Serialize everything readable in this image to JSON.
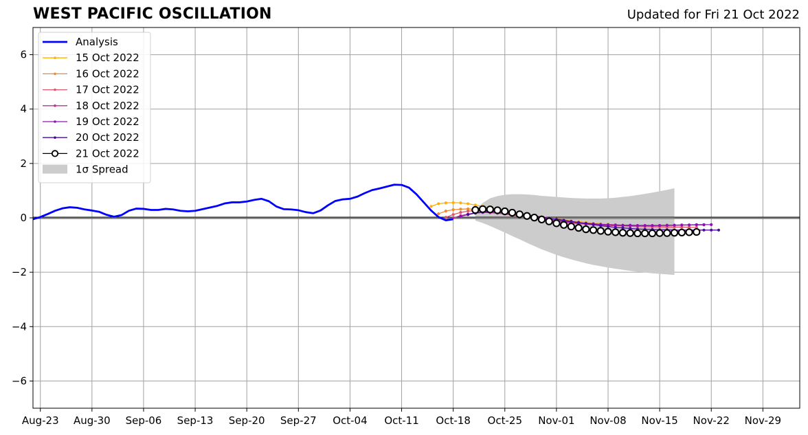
{
  "chart_data": {
    "type": "line",
    "title": "WEST PACIFIC OSCILLATION",
    "subtitle": "Updated for Fri 21 Oct 2022",
    "ylim": [
      -7,
      7
    ],
    "yticks": [
      -6,
      -4,
      -2,
      0,
      2,
      4,
      6
    ],
    "ytick_labels": [
      "−6",
      "−4",
      "−2",
      "0",
      "2",
      "4",
      "6"
    ],
    "xlim": [
      "2022-08-22",
      "2022-12-04"
    ],
    "xticks": [
      "2022-08-23",
      "2022-08-30",
      "2022-09-06",
      "2022-09-13",
      "2022-09-20",
      "2022-09-27",
      "2022-10-04",
      "2022-10-11",
      "2022-10-18",
      "2022-10-25",
      "2022-11-01",
      "2022-11-08",
      "2022-11-15",
      "2022-11-22",
      "2022-11-29"
    ],
    "xtick_labels": [
      "Aug-23",
      "Aug-30",
      "Sep-06",
      "Sep-13",
      "Sep-20",
      "Sep-27",
      "Oct-04",
      "Oct-11",
      "Oct-18",
      "Oct-25",
      "Nov-01",
      "Nov-08",
      "Nov-15",
      "Nov-22",
      "Nov-29"
    ],
    "grid": true,
    "legend_position": "upper-left",
    "colors": {
      "analysis": "#0000ff",
      "f15": "#ffb000",
      "f16": "#f28a2e",
      "f17": "#e0566a",
      "f18": "#b8328e",
      "f19": "#8e10b8",
      "f20": "#4c0aa0",
      "f21": "#000000",
      "spread": "#cccccc",
      "grid": "#a0a0a0"
    },
    "analysis": {
      "name": "Analysis",
      "start": "2022-08-22",
      "values": [
        -0.05,
        0.03,
        0.14,
        0.26,
        0.35,
        0.39,
        0.37,
        0.31,
        0.27,
        0.22,
        0.11,
        0.04,
        0.1,
        0.26,
        0.34,
        0.33,
        0.29,
        0.29,
        0.33,
        0.31,
        0.26,
        0.24,
        0.26,
        0.32,
        0.38,
        0.44,
        0.53,
        0.57,
        0.57,
        0.6,
        0.66,
        0.7,
        0.61,
        0.42,
        0.32,
        0.31,
        0.28,
        0.21,
        0.17,
        0.27,
        0.46,
        0.62,
        0.68,
        0.7,
        0.78,
        0.91,
        1.02,
        1.08,
        1.15,
        1.22,
        1.21,
        1.11,
        0.87,
        0.57,
        0.27,
        0.03,
        -0.09,
        -0.05
      ]
    },
    "spread": {
      "name": "1σ Spread",
      "start": "2022-10-21",
      "upper": [
        0.3,
        0.55,
        0.72,
        0.8,
        0.85,
        0.87,
        0.87,
        0.86,
        0.84,
        0.81,
        0.79,
        0.77,
        0.75,
        0.73,
        0.72,
        0.71,
        0.71,
        0.71,
        0.72,
        0.74,
        0.77,
        0.8,
        0.84,
        0.88,
        0.93,
        0.98,
        1.03,
        1.09
      ],
      "lower": [
        -0.1,
        -0.19,
        -0.3,
        -0.42,
        -0.54,
        -0.67,
        -0.79,
        -0.92,
        -1.04,
        -1.16,
        -1.26,
        -1.36,
        -1.45,
        -1.53,
        -1.6,
        -1.67,
        -1.73,
        -1.78,
        -1.83,
        -1.87,
        -1.91,
        -1.95,
        -1.98,
        -2.01,
        -2.04,
        -2.06,
        -2.08,
        -2.1
      ]
    },
    "series": [
      {
        "name": "15 Oct 2022",
        "key": "f15",
        "start": "2022-10-15",
        "values": [
          0.42,
          0.52,
          0.55,
          0.56,
          0.55,
          0.52,
          0.47,
          0.42,
          0.37,
          0.32,
          0.27,
          0.22,
          0.17,
          0.12,
          0.08,
          0.04,
          0.0,
          -0.04,
          -0.08,
          -0.11,
          -0.14,
          -0.17,
          -0.2,
          -0.22,
          -0.24,
          -0.26,
          -0.28,
          -0.29,
          -0.3,
          -0.31,
          -0.32,
          -0.33,
          -0.34,
          -0.34,
          -0.35
        ]
      },
      {
        "name": "16 Oct 2022",
        "key": "f16",
        "start": "2022-10-16",
        "values": [
          0.15,
          0.25,
          0.3,
          0.32,
          0.33,
          0.31,
          0.28,
          0.25,
          0.21,
          0.17,
          0.13,
          0.09,
          0.05,
          0.01,
          -0.03,
          -0.07,
          -0.1,
          -0.13,
          -0.16,
          -0.19,
          -0.21,
          -0.23,
          -0.25,
          -0.27,
          -0.28,
          -0.29,
          -0.3,
          -0.31,
          -0.32,
          -0.32,
          -0.33,
          -0.33,
          -0.34,
          -0.34,
          -0.34
        ]
      },
      {
        "name": "17 Oct 2022",
        "key": "f17",
        "start": "2022-10-17",
        "values": [
          0.02,
          0.12,
          0.2,
          0.25,
          0.26,
          0.25,
          0.22,
          0.18,
          0.14,
          0.1,
          0.06,
          0.02,
          -0.02,
          -0.06,
          -0.1,
          -0.13,
          -0.16,
          -0.19,
          -0.21,
          -0.23,
          -0.25,
          -0.27,
          -0.28,
          -0.29,
          -0.3,
          -0.31,
          -0.32,
          -0.32,
          -0.33,
          -0.33,
          -0.34,
          -0.34,
          -0.34,
          -0.35,
          -0.35
        ]
      },
      {
        "name": "18 Oct 2022",
        "key": "f18",
        "start": "2022-10-18",
        "values": [
          0.0,
          0.08,
          0.14,
          0.18,
          0.2,
          0.19,
          0.17,
          0.14,
          0.1,
          0.06,
          0.02,
          -0.02,
          -0.06,
          -0.1,
          -0.13,
          -0.16,
          -0.19,
          -0.21,
          -0.23,
          -0.25,
          -0.26,
          -0.27,
          -0.28,
          -0.28,
          -0.29,
          -0.29,
          -0.29,
          -0.29,
          -0.28,
          -0.28,
          -0.27,
          -0.27,
          -0.26,
          -0.26,
          -0.26
        ]
      },
      {
        "name": "19 Oct 2022",
        "key": "f19",
        "start": "2022-10-19",
        "values": [
          0.05,
          0.12,
          0.17,
          0.2,
          0.21,
          0.2,
          0.18,
          0.15,
          0.11,
          0.07,
          0.03,
          -0.01,
          -0.05,
          -0.09,
          -0.12,
          -0.15,
          -0.18,
          -0.2,
          -0.22,
          -0.24,
          -0.25,
          -0.26,
          -0.27,
          -0.27,
          -0.28,
          -0.28,
          -0.28,
          -0.28,
          -0.27,
          -0.27,
          -0.26,
          -0.26,
          -0.25,
          -0.25,
          -0.25
        ]
      },
      {
        "name": "20 Oct 2022",
        "key": "f20",
        "start": "2022-10-20",
        "values": [
          0.12,
          0.18,
          0.22,
          0.24,
          0.24,
          0.22,
          0.19,
          0.15,
          0.11,
          0.07,
          0.03,
          -0.01,
          -0.05,
          -0.09,
          -0.13,
          -0.17,
          -0.21,
          -0.25,
          -0.29,
          -0.32,
          -0.35,
          -0.37,
          -0.39,
          -0.41,
          -0.42,
          -0.43,
          -0.44,
          -0.44,
          -0.45,
          -0.45,
          -0.45,
          -0.45,
          -0.45,
          -0.45,
          -0.45
        ]
      },
      {
        "name": "21 Oct 2022",
        "key": "f21",
        "start": "2022-10-21",
        "values": [
          0.29,
          0.32,
          0.31,
          0.28,
          0.24,
          0.19,
          0.13,
          0.07,
          0.01,
          -0.06,
          -0.13,
          -0.2,
          -0.26,
          -0.32,
          -0.37,
          -0.42,
          -0.45,
          -0.48,
          -0.51,
          -0.53,
          -0.55,
          -0.56,
          -0.57,
          -0.57,
          -0.57,
          -0.56,
          -0.56,
          -0.55,
          -0.54,
          -0.53,
          -0.52
        ]
      }
    ],
    "legend": [
      "Analysis",
      "15 Oct 2022",
      "16 Oct 2022",
      "17 Oct 2022",
      "18 Oct 2022",
      "19 Oct 2022",
      "20 Oct 2022",
      "21 Oct 2022",
      "1σ Spread"
    ]
  }
}
